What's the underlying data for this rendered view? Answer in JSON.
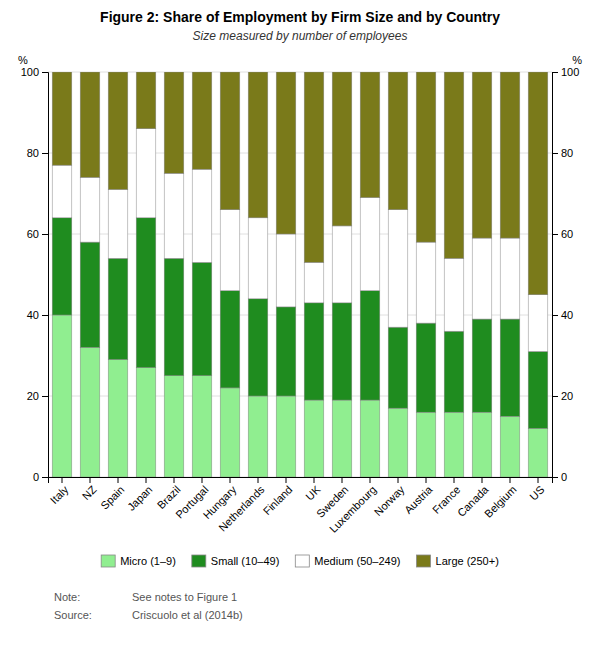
{
  "chart_data": {
    "type": "bar",
    "stacked": true,
    "title": "Figure 2: Share of Employment by Firm Size and by Country",
    "subtitle": "Size measured by number of employees",
    "y_label": "%",
    "y2_label": "%",
    "categories": [
      "Italy",
      "NZ",
      "Spain",
      "Japan",
      "Brazil",
      "Portugal",
      "Hungary",
      "Netherlands",
      "Finland",
      "UK",
      "Sweden",
      "Luxembourg",
      "Norway",
      "Austria",
      "France",
      "Canada",
      "Belgium",
      "US"
    ],
    "series": [
      {
        "name": "Micro (1–9)",
        "color": "#90EE90",
        "values": [
          40,
          32,
          29,
          27,
          25,
          25,
          22,
          20,
          20,
          19,
          19,
          19,
          17,
          16,
          16,
          16,
          15,
          12
        ]
      },
      {
        "name": "Small (10–49)",
        "color": "#1f8c1f",
        "values": [
          24,
          26,
          25,
          37,
          29,
          28,
          24,
          24,
          22,
          24,
          24,
          27,
          20,
          22,
          20,
          23,
          24,
          19
        ]
      },
      {
        "name": "Medium (50–249)",
        "color": "#FFFFFF",
        "values": [
          13,
          16,
          17,
          22,
          21,
          23,
          20,
          20,
          18,
          10,
          19,
          23,
          29,
          20,
          18,
          20,
          20,
          14
        ]
      },
      {
        "name": "Large (250+)",
        "color": "#7a7a1a",
        "values": [
          23,
          26,
          29,
          14,
          25,
          24,
          34,
          36,
          40,
          47,
          38,
          31,
          34,
          42,
          46,
          41,
          41,
          55
        ]
      }
    ],
    "ylim": [
      0,
      100
    ],
    "yticks": [
      0,
      20,
      40,
      60,
      80,
      100
    ],
    "y2lim": [
      0,
      100
    ],
    "y2ticks": [
      0,
      20,
      40,
      60,
      80,
      100
    ],
    "grid": true,
    "legend": "bottom",
    "annotations": [
      {
        "label": "Note:",
        "text": "See notes to Figure 1"
      },
      {
        "label": "Source:",
        "text": "Criscuolo et al (2014b)"
      }
    ]
  }
}
